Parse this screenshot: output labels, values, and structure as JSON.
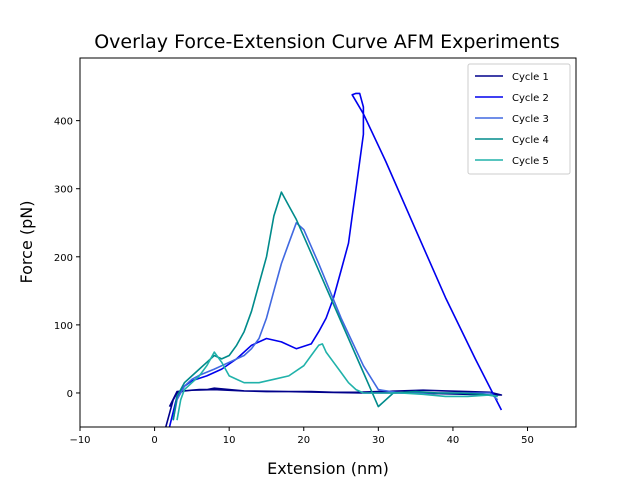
{
  "chart_data": {
    "type": "line",
    "title": "Overlay Force-Extension Curve AFM Experiments",
    "xlabel": "Extension (nm)",
    "ylabel": "Force (pN)",
    "xlim": [
      -10,
      56.5
    ],
    "ylim": [
      -50,
      492
    ],
    "xticks": [
      -10,
      0,
      10,
      20,
      30,
      40,
      50
    ],
    "yticks": [
      0,
      100,
      200,
      300,
      400
    ],
    "grid": false,
    "legend_position": "top-right",
    "series": [
      {
        "name": "Cycle 1",
        "color": "#00008b",
        "x": [
          1.5,
          2,
          2.5,
          3,
          4,
          5,
          6,
          7,
          8,
          10,
          12,
          15,
          18,
          21,
          24,
          27,
          30,
          33,
          36,
          39,
          42,
          45,
          46.5,
          45,
          42,
          38,
          33,
          28,
          23,
          18,
          12,
          8,
          5,
          3,
          2
        ],
        "y": [
          -50,
          -30,
          -10,
          0,
          3,
          4,
          5,
          5,
          7,
          5,
          3,
          2,
          2,
          2,
          1,
          1,
          2,
          3,
          4,
          3,
          2,
          1,
          -3,
          -3,
          -2,
          -1,
          0,
          0,
          1,
          2,
          3,
          5,
          4,
          2,
          -20
        ]
      },
      {
        "name": "Cycle 2",
        "color": "#0000ee",
        "x": [
          2,
          3,
          4,
          5,
          7,
          9,
          11,
          13,
          15,
          17,
          19,
          21,
          22,
          23,
          24,
          25,
          26,
          26.5,
          27,
          27.5,
          28,
          28,
          27.5,
          27,
          26.5,
          28,
          31,
          35,
          39,
          43,
          46.5
        ],
        "y": [
          -50,
          -5,
          10,
          18,
          25,
          35,
          50,
          70,
          80,
          75,
          65,
          72,
          90,
          110,
          140,
          180,
          220,
          260,
          300,
          340,
          380,
          420,
          440,
          440,
          438,
          410,
          340,
          240,
          140,
          50,
          -25
        ]
      },
      {
        "name": "Cycle 3",
        "color": "#4169e1",
        "x": [
          2.5,
          3,
          4,
          5,
          6,
          8,
          10,
          12,
          13,
          14,
          15,
          16,
          17,
          18,
          19,
          20,
          22,
          25,
          28,
          30,
          33,
          37,
          41,
          45,
          46
        ],
        "y": [
          -40,
          -10,
          10,
          20,
          26,
          35,
          45,
          55,
          65,
          80,
          110,
          150,
          190,
          220,
          250,
          240,
          190,
          110,
          40,
          5,
          0,
          0,
          0,
          0,
          -10
        ]
      },
      {
        "name": "Cycle 4",
        "color": "#008b8b",
        "x": [
          2.5,
          3,
          4,
          5,
          6,
          7,
          8,
          9,
          10,
          11,
          12,
          13,
          14,
          15,
          16,
          17,
          18,
          19,
          20,
          22,
          24,
          26,
          28,
          30,
          32,
          35,
          38,
          41,
          44,
          46
        ],
        "y": [
          -40,
          -5,
          15,
          25,
          35,
          45,
          55,
          50,
          55,
          70,
          90,
          120,
          160,
          200,
          260,
          295,
          275,
          255,
          230,
          180,
          130,
          80,
          30,
          -20,
          0,
          2,
          0,
          0,
          -2,
          -5
        ]
      },
      {
        "name": "Cycle 5",
        "color": "#20b2aa",
        "x": [
          3,
          3.5,
          4,
          5,
          6,
          7,
          8,
          9,
          10,
          12,
          14,
          16,
          18,
          20,
          21,
          22,
          22.5,
          23,
          24,
          25,
          26,
          27,
          28,
          29,
          30,
          33,
          36,
          39,
          42,
          45,
          46
        ],
        "y": [
          -40,
          -10,
          5,
          15,
          25,
          40,
          60,
          45,
          25,
          15,
          15,
          20,
          25,
          40,
          55,
          70,
          72,
          60,
          45,
          30,
          15,
          5,
          0,
          0,
          0,
          0,
          -2,
          -5,
          -5,
          -3,
          -5
        ]
      }
    ]
  }
}
